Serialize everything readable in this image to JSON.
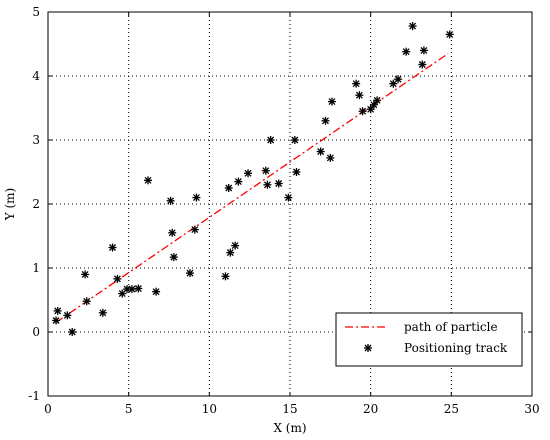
{
  "chart_data": {
    "type": "scatter",
    "title": "",
    "xlabel": "X (m)",
    "ylabel": "Y (m)",
    "xlim": [
      0,
      30
    ],
    "ylim": [
      -1,
      5
    ],
    "xticks": [
      0,
      5,
      10,
      15,
      20,
      25,
      30
    ],
    "yticks": [
      -1,
      0,
      1,
      2,
      3,
      4,
      5
    ],
    "grid": true,
    "legend_position": "bottom-right",
    "series": [
      {
        "name": "path of particle",
        "style": "dash-dot line",
        "color": "#ff0000",
        "x": [
          0.5,
          24.8
        ],
        "y": [
          0.15,
          4.35
        ]
      },
      {
        "name": "Positioning track",
        "style": "asterisk markers",
        "color": "#000000",
        "x": [
          0.5,
          0.6,
          1.2,
          1.5,
          2.3,
          2.4,
          3.4,
          4.0,
          4.3,
          4.6,
          4.9,
          5.2,
          5.6,
          6.2,
          6.7,
          7.6,
          7.7,
          7.8,
          8.8,
          9.1,
          9.2,
          11.0,
          11.2,
          11.3,
          11.6,
          11.8,
          12.4,
          13.5,
          13.6,
          13.8,
          14.3,
          14.9,
          15.3,
          15.4,
          16.9,
          17.2,
          17.5,
          17.6,
          19.1,
          19.3,
          19.5,
          20.0,
          20.2,
          20.4,
          21.4,
          21.7,
          22.2,
          22.6,
          23.2,
          23.3,
          24.9
        ],
        "y": [
          0.18,
          0.33,
          0.26,
          0.0,
          0.9,
          0.48,
          0.3,
          1.32,
          0.83,
          0.6,
          0.67,
          0.67,
          0.68,
          2.37,
          0.63,
          2.05,
          1.55,
          1.17,
          0.92,
          1.6,
          2.1,
          0.87,
          2.25,
          1.24,
          1.35,
          2.35,
          2.48,
          2.52,
          2.3,
          3.0,
          2.32,
          2.1,
          3.0,
          2.5,
          2.82,
          3.3,
          2.72,
          3.6,
          3.88,
          3.7,
          3.45,
          3.48,
          3.55,
          3.62,
          3.88,
          3.95,
          4.38,
          4.78,
          4.18,
          4.4,
          4.65
        ]
      }
    ]
  }
}
